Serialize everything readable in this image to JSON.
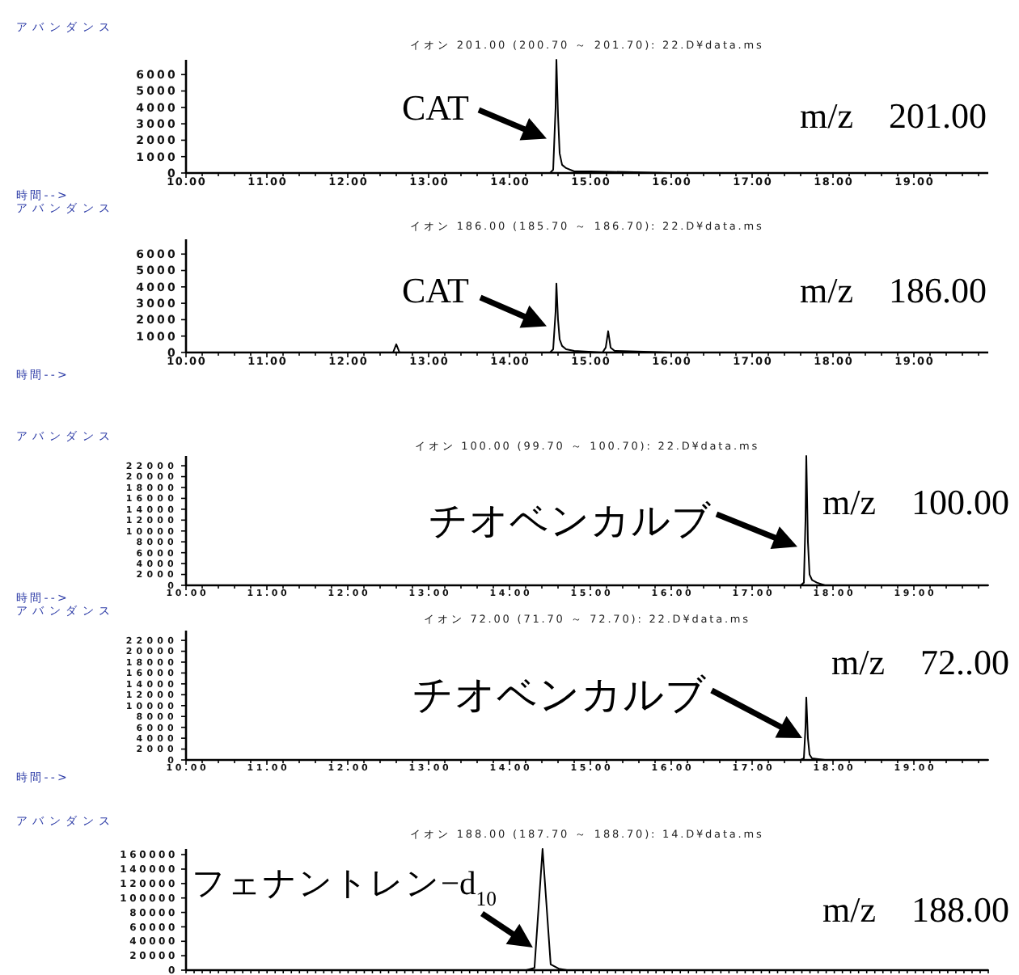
{
  "chart_data": [
    {
      "type": "line",
      "title": "イオン 201.00 (200.70 ～ 201.70): 22.D¥data.ms",
      "xlabel": "時間-->",
      "ylabel": "アバンダンス",
      "xlim": [
        10,
        19.92
      ],
      "ylim": [
        0,
        6900
      ],
      "yticks": [
        0,
        1000,
        2000,
        3000,
        4000,
        5000,
        6000
      ],
      "xticks": [
        {
          "value": 10,
          "label": "10.00"
        },
        {
          "value": 10.2,
          "label": null
        },
        {
          "value": 10.4,
          "label": null
        },
        {
          "value": 10.6,
          "label": null
        },
        {
          "value": 10.8,
          "label": null
        },
        {
          "value": 11,
          "label": "11.00"
        },
        {
          "value": 11.2,
          "label": null
        },
        {
          "value": 11.4,
          "label": null
        },
        {
          "value": 11.6,
          "label": null
        },
        {
          "value": 11.8,
          "label": null
        },
        {
          "value": 12,
          "label": "12.00"
        },
        {
          "value": 12.2,
          "label": null
        },
        {
          "value": 12.4,
          "label": null
        },
        {
          "value": 12.6,
          "label": null
        },
        {
          "value": 12.8,
          "label": null
        },
        {
          "value": 13,
          "label": "13.00"
        },
        {
          "value": 13.2,
          "label": null
        },
        {
          "value": 13.4,
          "label": null
        },
        {
          "value": 13.6,
          "label": null
        },
        {
          "value": 13.8,
          "label": null
        },
        {
          "value": 14,
          "label": "14.00"
        },
        {
          "value": 14.2,
          "label": null
        },
        {
          "value": 14.4,
          "label": null
        },
        {
          "value": 14.6,
          "label": null
        },
        {
          "value": 14.8,
          "label": null
        },
        {
          "value": 15,
          "label": "15.00"
        },
        {
          "value": 15.2,
          "label": null
        },
        {
          "value": 15.4,
          "label": null
        },
        {
          "value": 15.6,
          "label": null
        },
        {
          "value": 15.8,
          "label": null
        },
        {
          "value": 16,
          "label": "16.00"
        },
        {
          "value": 16.2,
          "label": null
        },
        {
          "value": 16.4,
          "label": null
        },
        {
          "value": 16.6,
          "label": null
        },
        {
          "value": 16.8,
          "label": null
        },
        {
          "value": 17,
          "label": "17.00"
        },
        {
          "value": 17.2,
          "label": null
        },
        {
          "value": 17.4,
          "label": null
        },
        {
          "value": 17.6,
          "label": null
        },
        {
          "value": 17.8,
          "label": null
        },
        {
          "value": 18,
          "label": "18.00"
        },
        {
          "value": 18.2,
          "label": null
        },
        {
          "value": 18.4,
          "label": null
        },
        {
          "value": 18.6,
          "label": null
        },
        {
          "value": 18.8,
          "label": null
        },
        {
          "value": 19,
          "label": "19.00"
        },
        {
          "value": 19.2,
          "label": null
        },
        {
          "value": 19.4,
          "label": null
        },
        {
          "value": 19.6,
          "label": null
        },
        {
          "value": 19.8,
          "label": null
        }
      ],
      "series": [
        {
          "color": "#000000",
          "x": [
            10,
            12,
            14.5,
            14.54,
            14.57,
            14.58,
            14.6,
            14.62,
            14.65,
            14.7,
            14.8,
            15,
            16,
            17
          ],
          "values": [
            0,
            0,
            0,
            200,
            4000,
            6900,
            3500,
            1200,
            500,
            300,
            100,
            100,
            0,
            0
          ]
        }
      ],
      "annotations": [
        {
          "text": "CAT",
          "x": 14.46,
          "y": 2100
        },
        "m/z　201.00"
      ]
    },
    {
      "type": "line",
      "title": "イオン 186.00 (185.70 ～ 186.70): 22.D¥data.ms",
      "xlabel": "時間-->",
      "ylabel": "アバンダンス",
      "xlim": [
        10,
        19.92
      ],
      "ylim": [
        0,
        6900
      ],
      "yticks": [
        0,
        1000,
        2000,
        3000,
        4000,
        5000,
        6000
      ],
      "xticks": [
        {
          "value": 10,
          "label": "10.00"
        },
        {
          "value": 10.2,
          "label": null
        },
        {
          "value": 10.4,
          "label": null
        },
        {
          "value": 10.6,
          "label": null
        },
        {
          "value": 10.8,
          "label": null
        },
        {
          "value": 11,
          "label": "11.00"
        },
        {
          "value": 11.2,
          "label": null
        },
        {
          "value": 11.4,
          "label": null
        },
        {
          "value": 11.6,
          "label": null
        },
        {
          "value": 11.8,
          "label": null
        },
        {
          "value": 12,
          "label": "12.00"
        },
        {
          "value": 12.2,
          "label": null
        },
        {
          "value": 12.4,
          "label": null
        },
        {
          "value": 12.6,
          "label": null
        },
        {
          "value": 12.8,
          "label": null
        },
        {
          "value": 13,
          "label": "13.00"
        },
        {
          "value": 13.2,
          "label": null
        },
        {
          "value": 13.4,
          "label": null
        },
        {
          "value": 13.6,
          "label": null
        },
        {
          "value": 13.8,
          "label": null
        },
        {
          "value": 14,
          "label": "14.00"
        },
        {
          "value": 14.2,
          "label": null
        },
        {
          "value": 14.4,
          "label": null
        },
        {
          "value": 14.6,
          "label": null
        },
        {
          "value": 14.8,
          "label": null
        },
        {
          "value": 15,
          "label": "15.00"
        },
        {
          "value": 15.2,
          "label": null
        },
        {
          "value": 15.4,
          "label": null
        },
        {
          "value": 15.6,
          "label": null
        },
        {
          "value": 15.8,
          "label": null
        },
        {
          "value": 16,
          "label": "16.00"
        },
        {
          "value": 16.2,
          "label": null
        },
        {
          "value": 16.4,
          "label": null
        },
        {
          "value": 16.6,
          "label": null
        },
        {
          "value": 16.8,
          "label": null
        },
        {
          "value": 17,
          "label": "17.00"
        },
        {
          "value": 17.2,
          "label": null
        },
        {
          "value": 17.4,
          "label": null
        },
        {
          "value": 17.6,
          "label": null
        },
        {
          "value": 17.8,
          "label": null
        },
        {
          "value": 18,
          "label": "18.00"
        },
        {
          "value": 18.2,
          "label": null
        },
        {
          "value": 18.4,
          "label": null
        },
        {
          "value": 18.6,
          "label": null
        },
        {
          "value": 18.8,
          "label": null
        },
        {
          "value": 19,
          "label": "19.00"
        },
        {
          "value": 19.2,
          "label": null
        },
        {
          "value": 19.4,
          "label": null
        },
        {
          "value": 19.6,
          "label": null
        },
        {
          "value": 19.8,
          "label": null
        }
      ],
      "series": [
        {
          "color": "#000000",
          "x": [
            10,
            12.56,
            12.6,
            12.64,
            14.5,
            14.54,
            14.57,
            14.58,
            14.6,
            14.62,
            14.65,
            14.7,
            14.8,
            15.15,
            15.19,
            15.22,
            15.25,
            15.3,
            16,
            17
          ],
          "values": [
            0,
            0,
            500,
            0,
            0,
            200,
            2500,
            4200,
            2000,
            800,
            400,
            200,
            100,
            0,
            300,
            1300,
            300,
            100,
            0,
            0
          ]
        }
      ],
      "annotations": [
        {
          "text": "CAT",
          "x": 14.46,
          "y": 1600
        },
        "m/z　186.00"
      ]
    },
    {
      "type": "line",
      "title": "イオン 100.00 (99.70 ～ 100.70): 22.D¥data.ms",
      "xlabel": "時間-->",
      "ylabel": "アバンダンス",
      "xlim": [
        10,
        19.92
      ],
      "ylim": [
        0,
        23800
      ],
      "yticks": [
        0,
        2000,
        4000,
        6000,
        8000,
        10000,
        12000,
        14000,
        16000,
        18000,
        20000,
        22000
      ],
      "xticks": [
        {
          "value": 10,
          "label": "10.00"
        },
        {
          "value": 10.2,
          "label": null
        },
        {
          "value": 10.4,
          "label": null
        },
        {
          "value": 10.6,
          "label": null
        },
        {
          "value": 10.8,
          "label": null
        },
        {
          "value": 11,
          "label": "11.00"
        },
        {
          "value": 11.2,
          "label": null
        },
        {
          "value": 11.4,
          "label": null
        },
        {
          "value": 11.6,
          "label": null
        },
        {
          "value": 11.8,
          "label": null
        },
        {
          "value": 12,
          "label": "12.00"
        },
        {
          "value": 12.2,
          "label": null
        },
        {
          "value": 12.4,
          "label": null
        },
        {
          "value": 12.6,
          "label": null
        },
        {
          "value": 12.8,
          "label": null
        },
        {
          "value": 13,
          "label": "13.00"
        },
        {
          "value": 13.2,
          "label": null
        },
        {
          "value": 13.4,
          "label": null
        },
        {
          "value": 13.6,
          "label": null
        },
        {
          "value": 13.8,
          "label": null
        },
        {
          "value": 14,
          "label": "14.00"
        },
        {
          "value": 14.2,
          "label": null
        },
        {
          "value": 14.4,
          "label": null
        },
        {
          "value": 14.6,
          "label": null
        },
        {
          "value": 14.8,
          "label": null
        },
        {
          "value": 15,
          "label": "15.00"
        },
        {
          "value": 15.2,
          "label": null
        },
        {
          "value": 15.4,
          "label": null
        },
        {
          "value": 15.6,
          "label": null
        },
        {
          "value": 15.8,
          "label": null
        },
        {
          "value": 16,
          "label": "16.00"
        },
        {
          "value": 16.2,
          "label": null
        },
        {
          "value": 16.4,
          "label": null
        },
        {
          "value": 16.6,
          "label": null
        },
        {
          "value": 16.8,
          "label": null
        },
        {
          "value": 17,
          "label": "17.00"
        },
        {
          "value": 17.2,
          "label": null
        },
        {
          "value": 17.4,
          "label": null
        },
        {
          "value": 17.6,
          "label": null
        },
        {
          "value": 17.8,
          "label": null
        },
        {
          "value": 18,
          "label": "18.00"
        },
        {
          "value": 18.2,
          "label": null
        },
        {
          "value": 18.4,
          "label": null
        },
        {
          "value": 18.6,
          "label": null
        },
        {
          "value": 18.8,
          "label": null
        },
        {
          "value": 19,
          "label": "19.00"
        },
        {
          "value": 19.2,
          "label": null
        },
        {
          "value": 19.4,
          "label": null
        },
        {
          "value": 19.6,
          "label": null
        },
        {
          "value": 19.8,
          "label": null
        }
      ],
      "series": [
        {
          "color": "#000000",
          "x": [
            10,
            17.5,
            17.6,
            17.64,
            17.66,
            17.67,
            17.69,
            17.71,
            17.74,
            17.8,
            17.9,
            18.2,
            19.92
          ],
          "values": [
            0,
            0,
            0,
            500,
            12000,
            23800,
            8000,
            2000,
            1000,
            500,
            0,
            0,
            0
          ]
        }
      ],
      "annotations": [
        {
          "text": "チオベンカルブ",
          "x": 17.56,
          "y": 7100
        },
        "m/z　100.00"
      ]
    },
    {
      "type": "line",
      "title": "イオン 72.00 (71.70 ～ 72.70): 22.D¥data.ms",
      "xlabel": "時間-->",
      "ylabel": "アバンダンス",
      "xlim": [
        10,
        19.92
      ],
      "ylim": [
        0,
        23800
      ],
      "yticks": [
        0,
        2000,
        4000,
        6000,
        8000,
        10000,
        12000,
        14000,
        16000,
        18000,
        20000,
        22000
      ],
      "xticks": [
        {
          "value": 10,
          "label": "10.00"
        },
        {
          "value": 10.2,
          "label": null
        },
        {
          "value": 10.4,
          "label": null
        },
        {
          "value": 10.6,
          "label": null
        },
        {
          "value": 10.8,
          "label": null
        },
        {
          "value": 11,
          "label": "11.00"
        },
        {
          "value": 11.2,
          "label": null
        },
        {
          "value": 11.4,
          "label": null
        },
        {
          "value": 11.6,
          "label": null
        },
        {
          "value": 11.8,
          "label": null
        },
        {
          "value": 12,
          "label": "12.00"
        },
        {
          "value": 12.2,
          "label": null
        },
        {
          "value": 12.4,
          "label": null
        },
        {
          "value": 12.6,
          "label": null
        },
        {
          "value": 12.8,
          "label": null
        },
        {
          "value": 13,
          "label": "13.00"
        },
        {
          "value": 13.2,
          "label": null
        },
        {
          "value": 13.4,
          "label": null
        },
        {
          "value": 13.6,
          "label": null
        },
        {
          "value": 13.8,
          "label": null
        },
        {
          "value": 14,
          "label": "14.00"
        },
        {
          "value": 14.2,
          "label": null
        },
        {
          "value": 14.4,
          "label": null
        },
        {
          "value": 14.6,
          "label": null
        },
        {
          "value": 14.8,
          "label": null
        },
        {
          "value": 15,
          "label": "15.00"
        },
        {
          "value": 15.2,
          "label": null
        },
        {
          "value": 15.4,
          "label": null
        },
        {
          "value": 15.6,
          "label": null
        },
        {
          "value": 15.8,
          "label": null
        },
        {
          "value": 16,
          "label": "16.00"
        },
        {
          "value": 16.2,
          "label": null
        },
        {
          "value": 16.4,
          "label": null
        },
        {
          "value": 16.6,
          "label": null
        },
        {
          "value": 16.8,
          "label": null
        },
        {
          "value": 17,
          "label": "17.00"
        },
        {
          "value": 17.2,
          "label": null
        },
        {
          "value": 17.4,
          "label": null
        },
        {
          "value": 17.6,
          "label": null
        },
        {
          "value": 17.8,
          "label": null
        },
        {
          "value": 18,
          "label": "18.00"
        },
        {
          "value": 18.2,
          "label": null
        },
        {
          "value": 18.4,
          "label": null
        },
        {
          "value": 18.6,
          "label": null
        },
        {
          "value": 18.8,
          "label": null
        },
        {
          "value": 19,
          "label": "19.00"
        },
        {
          "value": 19.2,
          "label": null
        },
        {
          "value": 19.4,
          "label": null
        },
        {
          "value": 19.6,
          "label": null
        },
        {
          "value": 19.8,
          "label": null
        }
      ],
      "series": [
        {
          "color": "#000000",
          "x": [
            10,
            17.5,
            17.6,
            17.64,
            17.66,
            17.67,
            17.69,
            17.71,
            17.74,
            17.8,
            17.9,
            18.2,
            19.92
          ],
          "values": [
            0,
            0,
            0,
            300,
            6000,
            11500,
            4000,
            1000,
            300,
            200,
            0,
            0,
            0
          ]
        }
      ],
      "annotations": [
        {
          "text": "チオベンカルブ",
          "x": 17.62,
          "y": 4000
        },
        "m/z　72..00"
      ]
    },
    {
      "type": "line",
      "title": "イオン 188.00 (187.70 ～ 188.70): 14.D¥data.ms",
      "ylabel": "アバンダンス",
      "tick_labels": "y",
      "categories": [
        null,
        null,
        null,
        null,
        null,
        null,
        null,
        null,
        null,
        null,
        null,
        null,
        null,
        null,
        null,
        null,
        null,
        null,
        null,
        null,
        null,
        null,
        null,
        null,
        null,
        null,
        null,
        null,
        null,
        null,
        null,
        null,
        null,
        null,
        null,
        null,
        null,
        null,
        null,
        null,
        null,
        null,
        null,
        null,
        null,
        null,
        null,
        null,
        null,
        null,
        null,
        null,
        null,
        null,
        null,
        null,
        null,
        null,
        null,
        null,
        null,
        null,
        null,
        null,
        null,
        null,
        null,
        null,
        null,
        null,
        null,
        null,
        null,
        null,
        null,
        null,
        null,
        null,
        null,
        null,
        null,
        null,
        null,
        null,
        null,
        null,
        null,
        null,
        null,
        null,
        null,
        null,
        null,
        null,
        null,
        null,
        null,
        null,
        null,
        null
      ],
      "ylim": [
        0,
        168000
      ],
      "yticks": [
        0,
        20000,
        40000,
        60000,
        80000,
        100000,
        120000,
        140000,
        160000
      ],
      "series": [
        {
          "color": "#000000",
          "values": [
            0,
            0,
            0,
            0,
            0,
            0,
            0,
            0,
            0,
            0,
            0,
            0,
            0,
            0,
            0,
            0,
            0,
            0,
            0,
            0,
            0,
            0,
            0,
            0,
            0,
            0,
            0,
            0,
            0,
            0,
            0,
            0,
            0,
            0,
            0,
            0,
            0,
            0,
            0,
            0,
            0,
            0,
            0,
            3000,
            168000,
            8000,
            2000,
            0,
            0,
            0,
            0,
            0,
            0,
            0,
            0,
            0,
            0,
            0,
            0,
            0,
            0,
            0,
            0,
            0,
            0,
            0,
            0,
            0,
            0,
            0,
            0,
            0,
            0,
            0,
            0,
            0,
            0,
            0,
            0,
            0,
            0,
            0,
            0,
            0,
            0,
            0,
            0,
            0,
            0,
            0,
            0,
            0,
            0,
            0,
            0,
            0,
            0,
            0,
            0,
            0
          ]
        }
      ],
      "annotations": [
        "フェナントレン−d$_{10}$",
        "m/z　188.00"
      ]
    }
  ]
}
